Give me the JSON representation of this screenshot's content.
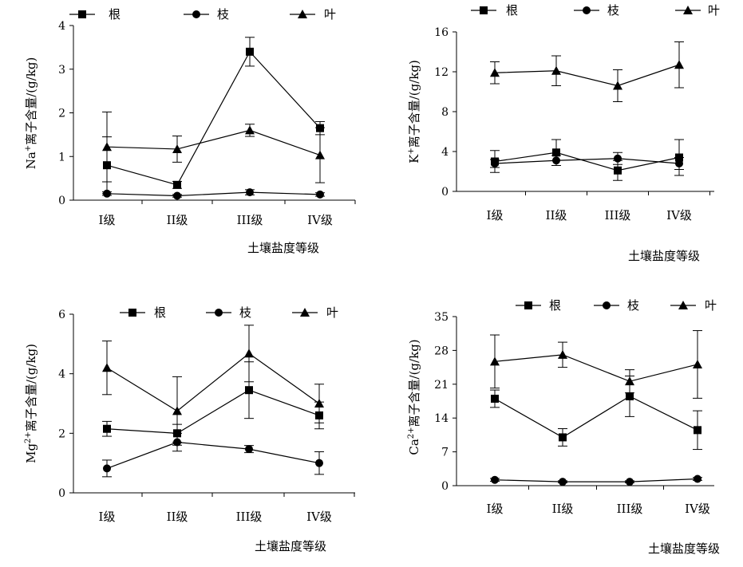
{
  "chart_data": [
    {
      "type": "line",
      "categories": [
        "I级",
        "II级",
        "III级",
        "IV级"
      ],
      "xlabel": "土壤盐度等级",
      "ylabel_main": "Na",
      "ylabel_sup": "+",
      "ylabel_rest": "离子含量/(g/kg)",
      "ylim": [
        0,
        4
      ],
      "yticks": [
        0,
        1,
        2,
        3,
        4
      ],
      "legend_placement": "top",
      "series": [
        {
          "name": "根",
          "marker": "square",
          "values": [
            0.8,
            0.35,
            3.4,
            1.65
          ],
          "err": [
            0.65,
            0.08,
            0.33,
            0.15
          ]
        },
        {
          "name": "枝",
          "marker": "circle",
          "values": [
            0.15,
            0.1,
            0.18,
            0.13
          ],
          "err": [
            0.04,
            0.03,
            0.06,
            0.04
          ]
        },
        {
          "name": "叶",
          "marker": "triangle",
          "values": [
            1.22,
            1.17,
            1.6,
            1.03
          ],
          "err": [
            0.8,
            0.3,
            0.14,
            0.63
          ]
        }
      ]
    },
    {
      "type": "line",
      "categories": [
        "I级",
        "II级",
        "III级",
        "IV级"
      ],
      "xlabel": "土壤盐度等级",
      "ylabel_main": "K",
      "ylabel_sup": "+",
      "ylabel_rest": "离子含量/(g/kg)",
      "ylim": [
        0,
        16
      ],
      "yticks": [
        0,
        4,
        8,
        12,
        16
      ],
      "legend_placement": "top",
      "series": [
        {
          "name": "根",
          "marker": "square",
          "values": [
            3.0,
            3.9,
            2.1,
            3.4
          ],
          "err": [
            1.1,
            1.3,
            1.0,
            1.8
          ]
        },
        {
          "name": "枝",
          "marker": "circle",
          "values": [
            2.8,
            3.1,
            3.3,
            2.8
          ],
          "err": [
            0.4,
            0.5,
            0.6,
            0.6
          ]
        },
        {
          "name": "叶",
          "marker": "triangle",
          "values": [
            11.9,
            12.1,
            10.6,
            12.7
          ],
          "err": [
            1.1,
            1.5,
            1.6,
            2.3
          ]
        }
      ]
    },
    {
      "type": "line",
      "categories": [
        "I级",
        "II级",
        "III级",
        "IV级"
      ],
      "xlabel": "土壤盐度等级",
      "ylabel_main": "Mg",
      "ylabel_sup": "2+",
      "ylabel_rest": "离子含量/(g/kg)",
      "ylim": [
        0,
        6
      ],
      "yticks": [
        0,
        2,
        4,
        6
      ],
      "legend_placement": "top",
      "series": [
        {
          "name": "根",
          "marker": "square",
          "values": [
            2.15,
            2.0,
            3.45,
            2.6
          ],
          "err": [
            0.25,
            0.3,
            0.95,
            0.45
          ]
        },
        {
          "name": "枝",
          "marker": "circle",
          "values": [
            0.82,
            1.7,
            1.47,
            1.0
          ],
          "err": [
            0.28,
            0.3,
            0.12,
            0.38
          ]
        },
        {
          "name": "叶",
          "marker": "triangle",
          "values": [
            4.2,
            2.75,
            4.68,
            3.0
          ],
          "err": [
            0.9,
            1.15,
            0.95,
            0.65
          ]
        }
      ]
    },
    {
      "type": "line",
      "categories": [
        "I级",
        "II级",
        "III级",
        "IV级"
      ],
      "xlabel": "土壤盐度等级",
      "ylabel_main": "Ca",
      "ylabel_sup": "2+",
      "ylabel_rest": "离子含量/(g/kg)",
      "ylim": [
        0,
        35
      ],
      "yticks": [
        0,
        7,
        14,
        21,
        28,
        35
      ],
      "legend_placement": "top",
      "series": [
        {
          "name": "根",
          "marker": "square",
          "values": [
            18.0,
            10.0,
            18.5,
            11.5
          ],
          "err": [
            1.8,
            1.8,
            4.2,
            4.0
          ]
        },
        {
          "name": "枝",
          "marker": "circle",
          "values": [
            1.2,
            0.8,
            0.8,
            1.4
          ],
          "err": [
            0.3,
            0.2,
            0.2,
            0.3
          ]
        },
        {
          "name": "叶",
          "marker": "triangle",
          "values": [
            25.7,
            27.1,
            21.6,
            25.1
          ],
          "err": [
            5.5,
            2.6,
            2.4,
            7.0
          ]
        }
      ]
    }
  ]
}
